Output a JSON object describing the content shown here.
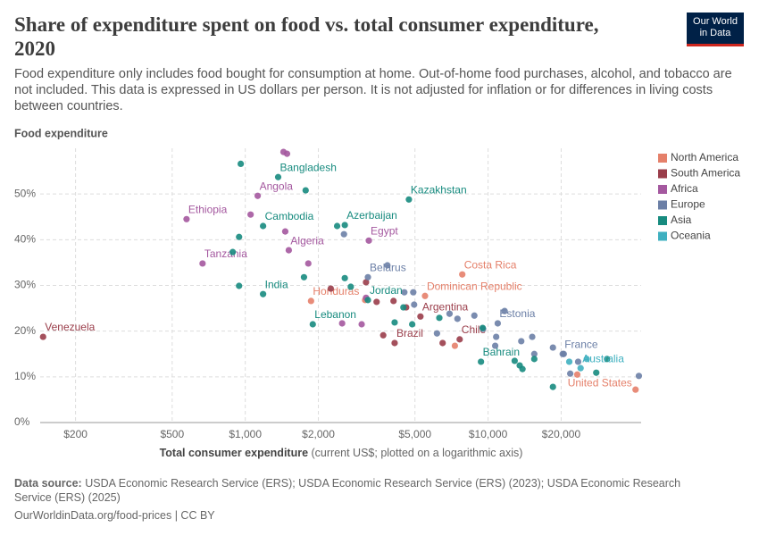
{
  "header": {
    "title": "Share of expenditure spent on food vs. total consumer expenditure, 2020",
    "subtitle": "Food expenditure only includes food bought for consumption at home. Out-of-home food purchases, alcohol, and tobacco are not included. This data is expressed in US dollars per person. It is not adjusted for inflation or for differences in living costs between countries.",
    "logo_line1": "Our World",
    "logo_line2": "in Data"
  },
  "chart_data": {
    "type": "scatter",
    "ylabel": "Food expenditure",
    "xlabel": "Total consumer expenditure",
    "xlabel_note": "(current US$; plotted on a logarithmic axis)",
    "xscale": "log",
    "xlim": [
      143,
      42700
    ],
    "ylim": [
      0,
      60
    ],
    "grid": true,
    "xticks": [
      {
        "value": 200,
        "label": "$200"
      },
      {
        "value": 500,
        "label": "$500"
      },
      {
        "value": 1000,
        "label": "$1,000"
      },
      {
        "value": 2000,
        "label": "$2,000"
      },
      {
        "value": 5000,
        "label": "$5,000"
      },
      {
        "value": 10000,
        "label": "$10,000"
      },
      {
        "value": 20000,
        "label": "$20,000"
      }
    ],
    "yticks": [
      {
        "value": 0,
        "label": "0%"
      },
      {
        "value": 10,
        "label": "10%"
      },
      {
        "value": 20,
        "label": "20%"
      },
      {
        "value": 30,
        "label": "30%"
      },
      {
        "value": 40,
        "label": "40%"
      },
      {
        "value": 50,
        "label": "50%"
      }
    ],
    "series": [
      {
        "name": "North America",
        "color": "#e5806a",
        "x": [
          1866,
          5500,
          7830,
          40500,
          3116,
          7300,
          23300
        ],
        "values": [
          26.6,
          27.7,
          32.4,
          7.2,
          26.8,
          16.8,
          10.5
        ],
        "labels": [
          "Honduras",
          "Dominican Republic",
          "Costa Rica",
          "United States",
          null,
          null,
          null
        ]
      },
      {
        "name": "South America",
        "color": "#9a3d4a",
        "x": [
          147,
          5266,
          4123,
          7640,
          2250,
          3143,
          3475,
          3700,
          4080,
          4600,
          6500
        ],
        "values": [
          18.75,
          23.2,
          17.4,
          18.2,
          29.3,
          30.7,
          26.4,
          19.1,
          26.6,
          25.2,
          17.4
        ],
        "labels": [
          "Venezuela",
          "Argentina",
          "Brazil",
          "Chile",
          null,
          null,
          null,
          null,
          null,
          null,
          null
        ]
      },
      {
        "name": "Africa",
        "color": "#a4589f",
        "x": [
          573,
          667,
          1125,
          1511,
          3228,
          1437,
          1486,
          1052,
          1461,
          1818,
          2506,
          3016,
          3143
        ],
        "values": [
          44.5,
          34.8,
          49.6,
          37.7,
          39.8,
          59.2,
          58.8,
          45.5,
          41.8,
          34.8,
          21.7,
          21.5,
          27.3
        ],
        "labels": [
          "Ethiopia",
          "Tanzania",
          "Angola",
          "Algeria",
          "Egypt",
          null,
          null,
          null,
          null,
          null,
          null,
          null,
          null
        ]
      },
      {
        "name": "Europe",
        "color": "#6b7fa6",
        "x": [
          3200,
          10960,
          20300,
          3850,
          2550,
          4520,
          4920,
          4960,
          6160,
          6940,
          7480,
          8780,
          9540,
          10800,
          10700,
          11700,
          13700,
          15200,
          15500,
          18500,
          20500,
          21800,
          23500,
          41800
        ],
        "values": [
          31.8,
          21.7,
          15,
          34.4,
          41.2,
          28.5,
          28.5,
          25.8,
          19.5,
          23.8,
          22.7,
          23.4,
          20.5,
          18.75,
          16.8,
          24.4,
          17.8,
          18.75,
          15,
          16.4,
          15,
          10.7,
          13.3,
          10.2
        ],
        "labels": [
          "Belarus",
          "Estonia",
          "France",
          null,
          null,
          null,
          null,
          null,
          null,
          null,
          null,
          null,
          null,
          null,
          null,
          null,
          null,
          null,
          null,
          null,
          null,
          null,
          null,
          null
        ]
      },
      {
        "name": "Asia",
        "color": "#178b7f",
        "x": [
          1366,
          1184,
          1184,
          1897,
          2570,
          3200,
          4720,
          9350,
          958,
          1773,
          943,
          888,
          943,
          1745,
          2390,
          2570,
          2720,
          4123,
          4480,
          4870,
          6300,
          9500,
          12870,
          13500,
          13860,
          15500,
          18500,
          30900,
          27900
        ],
        "values": [
          53.7,
          43,
          28.1,
          21.5,
          43.2,
          26.8,
          48.8,
          13.3,
          56.6,
          50.8,
          40.6,
          37.3,
          29.9,
          31.8,
          43,
          31.6,
          29.7,
          21.9,
          25.2,
          21.5,
          22.9,
          20.7,
          13.5,
          12.5,
          11.7,
          13.9,
          7.8,
          13.9,
          10.9
        ],
        "labels": [
          "Bangladesh",
          "Cambodia",
          "India",
          "Lebanon",
          "Azerbaijan",
          "Jordan",
          "Kazakhstan",
          "Bahrain",
          null,
          null,
          null,
          null,
          null,
          null,
          null,
          null,
          null,
          null,
          null,
          null,
          null,
          null,
          null,
          null,
          null,
          null,
          null,
          null,
          null
        ]
      },
      {
        "name": "Oceania",
        "color": "#3fb0c0",
        "x": [
          24050,
          25500,
          21600
        ],
        "values": [
          11.9,
          13.9,
          13.3
        ],
        "labels": [
          "Australia",
          null,
          null
        ]
      }
    ]
  },
  "footer": {
    "source_label": "Data source:",
    "source": "USDA Economic Research Service (ERS); USDA Economic Research Service (ERS) (2023); USDA Economic Research Service (ERS) (2025)",
    "url": "OurWorldinData.org/food-prices | CC BY"
  }
}
